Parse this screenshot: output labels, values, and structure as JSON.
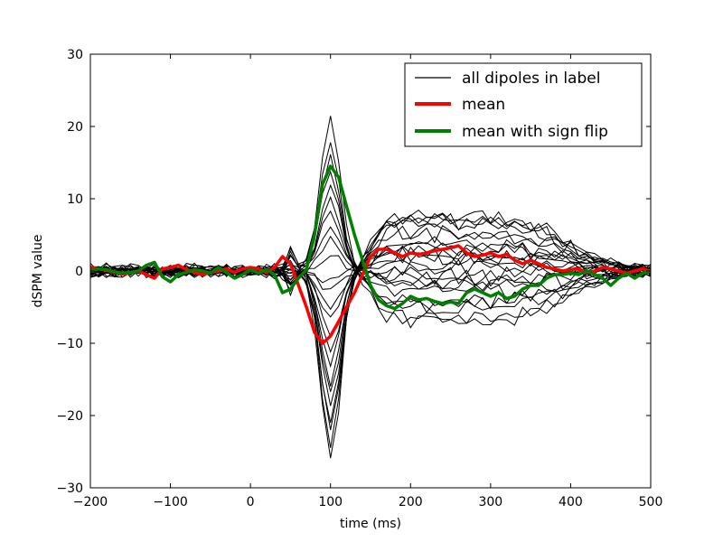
{
  "chart_data": {
    "type": "line",
    "xlabel": "time (ms)",
    "ylabel": "dSPM value",
    "xlim": [
      -200,
      500
    ],
    "ylim": [
      -30,
      30
    ],
    "xticks": [
      -200,
      -100,
      0,
      100,
      200,
      300,
      400,
      500
    ],
    "yticks": [
      -30,
      -20,
      -10,
      0,
      10,
      20,
      30
    ],
    "xtick_labels": [
      "−200",
      "−100",
      "0",
      "100",
      "200",
      "300",
      "400",
      "500"
    ],
    "ytick_labels": [
      "−30",
      "−20",
      "−10",
      "0",
      "10",
      "20",
      "30"
    ],
    "grid": false,
    "legend_position": "top-right",
    "legend": [
      {
        "label": "all dipoles in label",
        "color": "#000000"
      },
      {
        "label": "mean",
        "color": "#ff0000"
      },
      {
        "label": "mean with sign flip",
        "color": "#008000"
      }
    ],
    "x": [
      -200,
      -190,
      -180,
      -170,
      -160,
      -150,
      -140,
      -130,
      -120,
      -110,
      -100,
      -90,
      -80,
      -70,
      -60,
      -50,
      -40,
      -30,
      -20,
      -10,
      0,
      10,
      20,
      30,
      40,
      50,
      60,
      70,
      80,
      90,
      100,
      110,
      120,
      130,
      140,
      150,
      160,
      170,
      180,
      190,
      200,
      210,
      220,
      230,
      240,
      250,
      260,
      270,
      280,
      290,
      300,
      310,
      320,
      330,
      340,
      350,
      360,
      370,
      380,
      390,
      400,
      410,
      420,
      430,
      440,
      450,
      460,
      470,
      480,
      490,
      500
    ],
    "dipole_peak_values_at_100ms": [
      21,
      18,
      16,
      14,
      12,
      10,
      8,
      6,
      4,
      2,
      -1,
      -3,
      -5,
      -7,
      -9,
      -11,
      -13,
      -15,
      -17,
      -19,
      -21,
      -22,
      -24,
      -26
    ],
    "series": [
      {
        "name": "mean",
        "color": "#ff0000",
        "values": [
          0.5,
          0.3,
          0.1,
          -0.2,
          -0.4,
          -0.3,
          0.0,
          -0.5,
          -1.0,
          0.3,
          0.5,
          0.8,
          0.2,
          -0.2,
          -0.5,
          -0.2,
          0.0,
          0.3,
          -0.2,
          0.3,
          0.5,
          0.3,
          -0.2,
          0.5,
          2.0,
          1.0,
          -2.0,
          -5.0,
          -8.5,
          -10.0,
          -9.0,
          -7.0,
          -5.0,
          -3.0,
          -0.5,
          2.0,
          3.0,
          3.0,
          2.5,
          2.0,
          2.5,
          2.3,
          2.5,
          2.8,
          3.0,
          3.2,
          3.5,
          2.5,
          2.0,
          2.2,
          2.5,
          2.0,
          2.3,
          1.5,
          1.0,
          1.5,
          1.0,
          0.5,
          0.3,
          0.0,
          0.2,
          0.3,
          -0.2,
          0.0,
          0.5,
          0.3,
          0.0,
          -0.3,
          0.0,
          0.3,
          0.0
        ]
      },
      {
        "name": "mean with sign flip",
        "color": "#008000",
        "values": [
          0.0,
          0.3,
          0.2,
          -0.1,
          -0.3,
          -0.2,
          0.0,
          0.8,
          1.2,
          -0.8,
          -1.5,
          -0.5,
          -0.2,
          0.2,
          0.0,
          -0.3,
          0.5,
          -0.2,
          -1.0,
          -0.5,
          0.2,
          -0.3,
          0.2,
          -0.5,
          -3.0,
          -2.5,
          -1.0,
          0.2,
          5.0,
          12.0,
          14.5,
          13.0,
          9.0,
          5.0,
          1.5,
          -2.0,
          -4.0,
          -4.8,
          -5.2,
          -4.5,
          -3.5,
          -4.0,
          -3.8,
          -4.2,
          -4.5,
          -4.3,
          -4.5,
          -3.0,
          -2.5,
          -3.0,
          -3.5,
          -3.0,
          -3.8,
          -3.5,
          -2.5,
          -2.0,
          -2.0,
          -1.0,
          -0.5,
          -0.5,
          -0.3,
          -0.5,
          0.0,
          -0.5,
          -1.0,
          -2.0,
          -1.0,
          -0.3,
          -1.0,
          -0.3,
          0.0
        ]
      }
    ]
  }
}
